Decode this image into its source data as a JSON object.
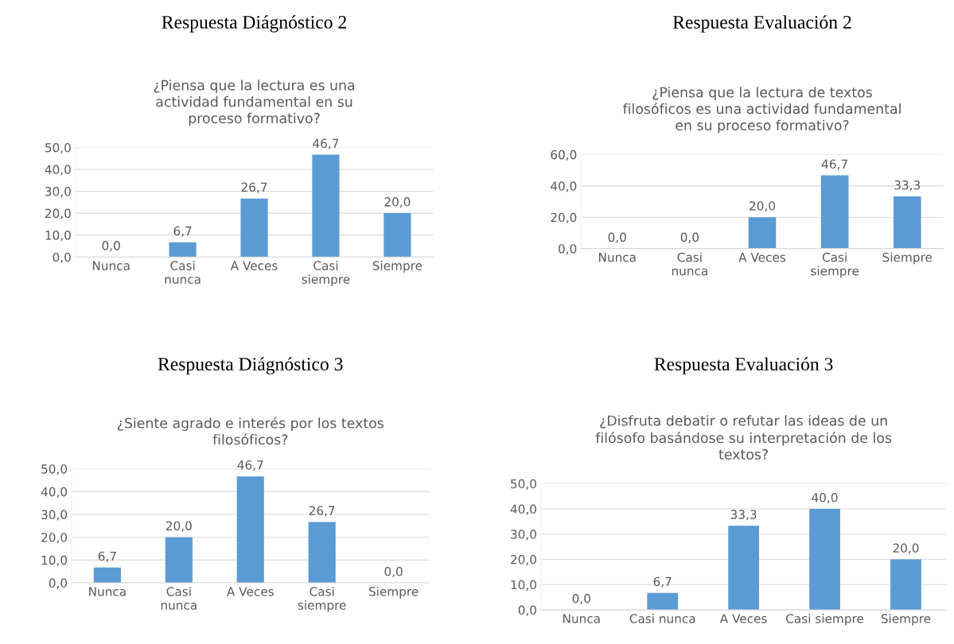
{
  "chart_data": [
    {
      "type": "bar",
      "title": "Respuesta Diágnóstico 2",
      "subtitle": "¿Piensa que la lectura es una\nactividad fundamental en su\nproceso formativo?",
      "categories": [
        "Nunca",
        "Casi\nnunca",
        "A Veces",
        "Casi\nsiempre",
        "Siempre"
      ],
      "values": [
        0.0,
        6.7,
        26.7,
        46.7,
        20.0
      ],
      "value_labels": [
        "0,0",
        "6,7",
        "26,7",
        "46,7",
        "20,0"
      ],
      "color": "#5b9bd5",
      "ylim": [
        0,
        50
      ],
      "yticks": [
        {
          "value": 0,
          "label": "0,0"
        },
        {
          "value": 10,
          "label": "10,0"
        },
        {
          "value": 20,
          "label": "20,0"
        },
        {
          "value": 30,
          "label": "30,0"
        },
        {
          "value": 40,
          "label": "40,0"
        },
        {
          "value": 50,
          "label": "50,0"
        }
      ],
      "grid": "y"
    },
    {
      "type": "bar",
      "title": "Respuesta Evaluación 2",
      "subtitle": "¿Piensa que la lectura de textos\nfilosóficos es una actividad fundamental\nen su proceso formativo?",
      "categories": [
        "Nunca",
        "Casi\nnunca",
        "A Veces",
        "Casi\nsiempre",
        "Siempre"
      ],
      "values": [
        0.0,
        0.0,
        20.0,
        46.7,
        33.3
      ],
      "value_labels": [
        "0,0",
        "0,0",
        "20,0",
        "46,7",
        "33,3"
      ],
      "color": "#5b9bd5",
      "ylim": [
        0,
        60
      ],
      "yticks": [
        {
          "value": 0,
          "label": "0,0"
        },
        {
          "value": 20,
          "label": "20,0"
        },
        {
          "value": 40,
          "label": "40,0"
        },
        {
          "value": 60,
          "label": "60,0"
        }
      ],
      "grid": "y"
    },
    {
      "type": "bar",
      "title": "Respuesta Diágnóstico 3",
      "subtitle": "¿Siente agrado e interés por los textos\nfilosóficos?",
      "categories": [
        "Nunca",
        "Casi\nnunca",
        "A Veces",
        "Casi\nsiempre",
        "Siempre"
      ],
      "values": [
        6.7,
        20.0,
        46.7,
        26.7,
        0.0
      ],
      "value_labels": [
        "6,7",
        "20,0",
        "46,7",
        "26,7",
        "0,0"
      ],
      "color": "#5b9bd5",
      "ylim": [
        0,
        50
      ],
      "yticks": [
        {
          "value": 0,
          "label": "0,0"
        },
        {
          "value": 10,
          "label": "10,0"
        },
        {
          "value": 20,
          "label": "20,0"
        },
        {
          "value": 30,
          "label": "30,0"
        },
        {
          "value": 40,
          "label": "40,0"
        },
        {
          "value": 50,
          "label": "50,0"
        }
      ],
      "grid": "y"
    },
    {
      "type": "bar",
      "title": "Respuesta Evaluación 3",
      "subtitle": "¿Disfruta debatir o refutar las ideas de un\nfilósofo basándose su interpretación de los\ntextos?",
      "categories": [
        "Nunca",
        "Casi nunca",
        "A Veces",
        "Casi siempre",
        "Siempre"
      ],
      "values": [
        0.0,
        6.7,
        33.3,
        40.0,
        20.0
      ],
      "value_labels": [
        "0,0",
        "6,7",
        "33,3",
        "40,0",
        "20,0"
      ],
      "color": "#5b9bd5",
      "ylim": [
        0,
        50
      ],
      "yticks": [
        {
          "value": 0,
          "label": "0,0"
        },
        {
          "value": 10,
          "label": "10,0"
        },
        {
          "value": 20,
          "label": "20,0"
        },
        {
          "value": 30,
          "label": "30,0"
        },
        {
          "value": 40,
          "label": "40,0"
        },
        {
          "value": 50,
          "label": "50,0"
        }
      ],
      "grid": "y"
    }
  ]
}
